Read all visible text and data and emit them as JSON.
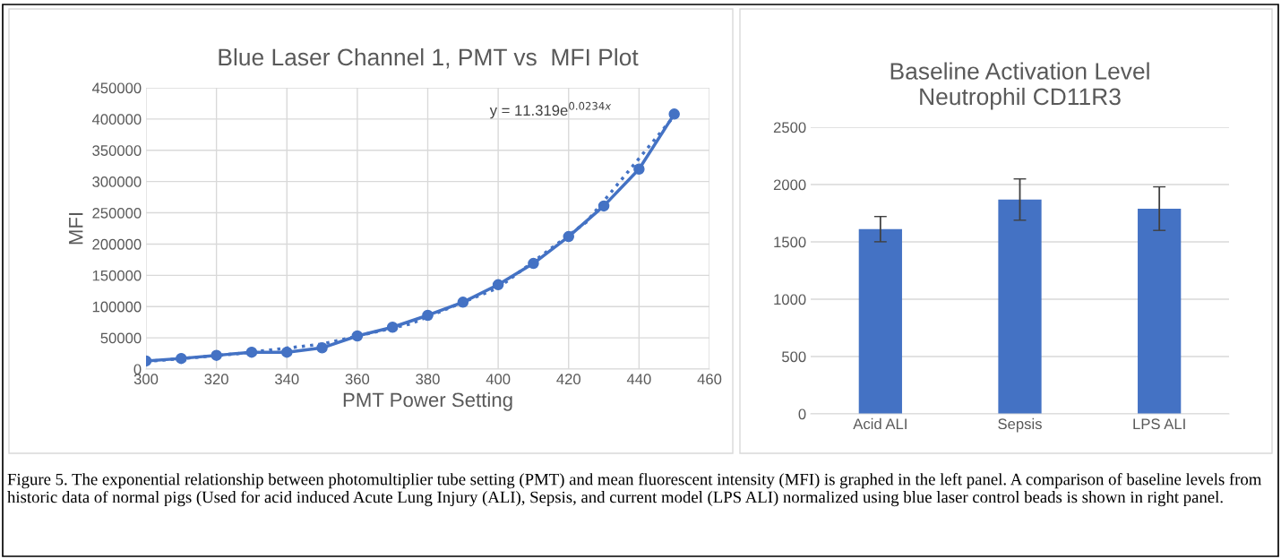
{
  "chart_data": [
    {
      "type": "line",
      "title": "Blue Laser Channel 1, PMT vs  MFI Plot",
      "xlabel": "PMT Power Setting",
      "ylabel": "MFI",
      "x": [
        300,
        310,
        320,
        330,
        340,
        350,
        360,
        370,
        380,
        390,
        400,
        410,
        420,
        430,
        440,
        450
      ],
      "series": [
        {
          "color": "#4472c4",
          "marker": "circle",
          "line_style": "solid",
          "values": [
            13000,
            17000,
            22000,
            27000,
            27000,
            34000,
            53000,
            67000,
            86000,
            107000,
            135000,
            169000,
            212000,
            261000,
            320000,
            408000
          ]
        },
        {
          "type": "line",
          "color": "#4472c4",
          "marker": "none",
          "line_style": "dotted",
          "x": [
            300,
            325,
            350,
            375,
            400,
            425,
            450
          ],
          "values": [
            12000,
            24000,
            40000,
            72000,
            130000,
            235000,
            405000
          ]
        }
      ],
      "xlim": [
        300,
        460
      ],
      "xticks": [
        300,
        320,
        340,
        360,
        380,
        400,
        420,
        440,
        460
      ],
      "ylim": [
        0,
        450000
      ],
      "yticks": [
        0,
        50000,
        100000,
        150000,
        200000,
        250000,
        300000,
        350000,
        400000,
        450000
      ],
      "grid": true,
      "legend": false,
      "annotations": [
        "y = 11.319e$^{0.0234x}$",
        "Figure 5. The exponential relationship between photomultiplier tube setting (PMT) and mean fluorescent intensity (MFI) is graphed in the left panel. A comparison of baseline levels from historic data of normal pigs (Used for acid induced Acute Lung Injury (ALI), Sepsis, and current model (LPS ALI) normalized using blue laser control beads is shown in right panel."
      ]
    },
    {
      "type": "bar",
      "title": "Baseline Activation Level\nNeutrophil CD11R3",
      "categories": [
        "Acid ALI",
        "Sepsis",
        "LPS ALI"
      ],
      "values": [
        1611,
        1869,
        1790
      ],
      "errors": [
        110,
        180,
        190
      ],
      "color": "#4472c4",
      "ylim": [
        0,
        2500
      ],
      "yticks": [
        0,
        500,
        1000,
        1500,
        2000,
        2500
      ],
      "grid": "y",
      "legend": false
    }
  ]
}
